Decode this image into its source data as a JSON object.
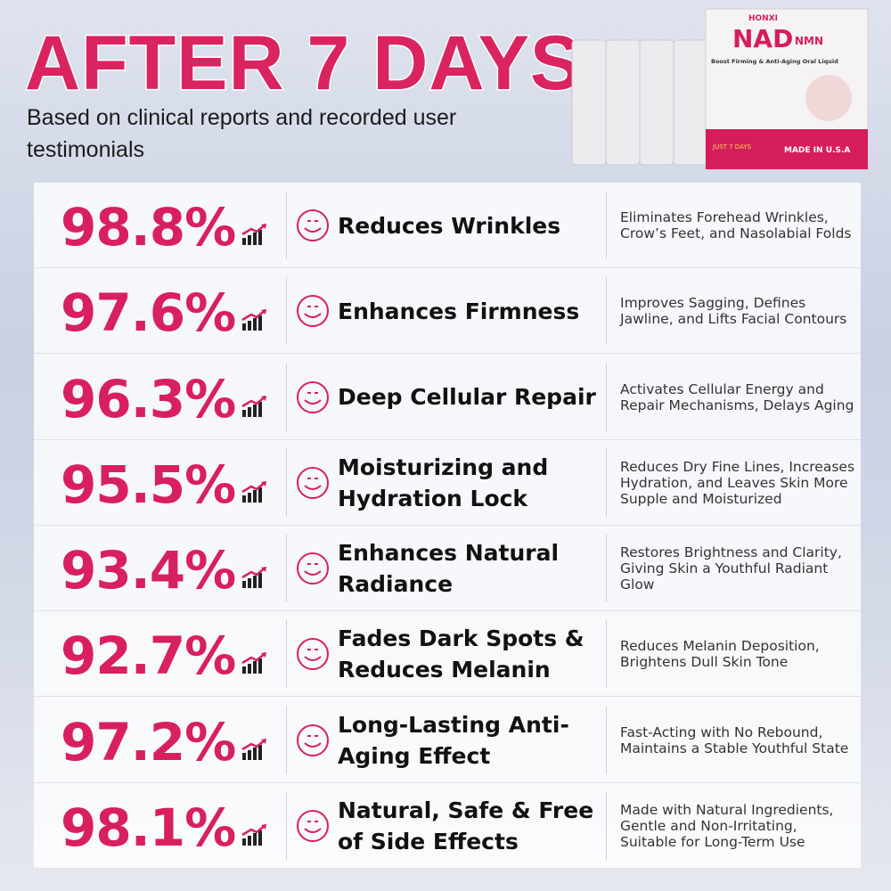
{
  "header": {
    "title": "AFTER 7 DAYS",
    "subtitle": "Based on clinical reports and recorded user testimonials"
  },
  "product": {
    "brand": "HONXI",
    "name": "NAD",
    "name_suffix": "NMN",
    "tagline": "Boost Firming & Anti-Aging Oral Liquid",
    "badge": "JUST 7 DAYS",
    "origin": "MADE IN U.S.A"
  },
  "table": {
    "rows": [
      [
        "98.8%",
        "Reduces Wrinkles",
        "Eliminates Forehead Wrinkles, Crow’s Feet, and Nasolabial Folds"
      ],
      [
        "97.6%",
        "Enhances Firmness",
        "Improves Sagging, Defines Jawline, and Lifts Facial Contours"
      ],
      [
        "96.3%",
        "Deep Cellular Repair",
        "Activates Cellular Energy and Repair Mechanisms, Delays Aging"
      ],
      [
        "95.5%",
        "Moisturizing and Hydration Lock",
        "Reduces Dry Fine Lines, Increases Hydration, and Leaves Skin More Supple and Moisturized"
      ],
      [
        "93.4%",
        "Enhances Natural Radiance",
        "Restores Brightness and Clarity, Giving Skin a Youthful Radiant Glow"
      ],
      [
        "92.7%",
        "Fades Dark Spots & Reduces Melanin",
        "Reduces Melanin Deposition, Brightens Dull Skin Tone"
      ],
      [
        "97.2%",
        "Long-Lasting Anti-Aging Effect",
        "Fast-Acting with No Rebound, Maintains a Stable Youthful State"
      ],
      [
        "98.1%",
        "Natural, Safe & Free of Side Effects",
        "Made with Natural Ingredients, Gentle and Non-Irritating, Suitable for Long-Term Use"
      ]
    ]
  }
}
